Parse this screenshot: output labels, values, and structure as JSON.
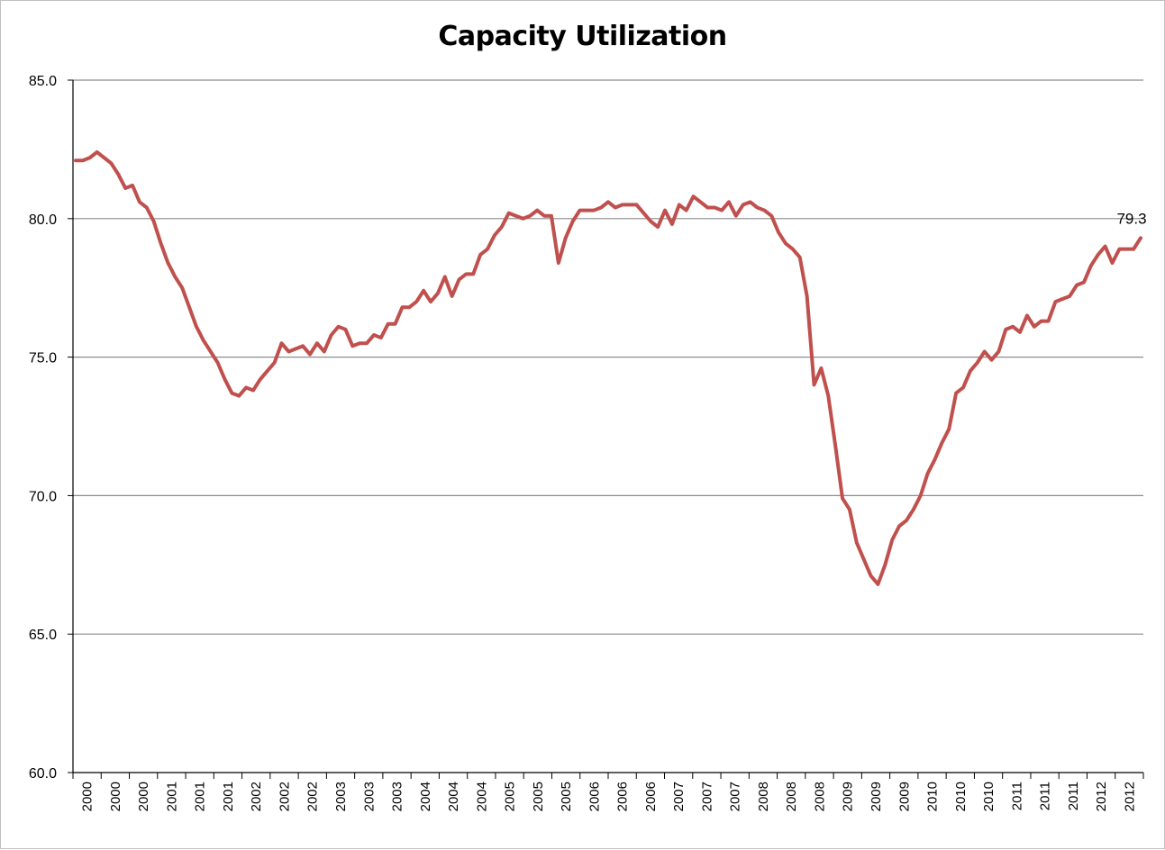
{
  "chart_data": {
    "type": "line",
    "title": "Capacity Utilization",
    "xlabel": "",
    "ylabel": "",
    "ylim": [
      60,
      85
    ],
    "y_ticks": [
      "60.0",
      "65.0",
      "70.0",
      "75.0",
      "80.0",
      "85.0"
    ],
    "y_tick_values": [
      60,
      65,
      70,
      75,
      80,
      85
    ],
    "x_tick_labels": [
      "2000",
      "2000",
      "2000",
      "2001",
      "2001",
      "2001",
      "2002",
      "2002",
      "2002",
      "2003",
      "2003",
      "2003",
      "2004",
      "2004",
      "2004",
      "2005",
      "2005",
      "2005",
      "2006",
      "2006",
      "2006",
      "2007",
      "2007",
      "2007",
      "2008",
      "2008",
      "2008",
      "2009",
      "2009",
      "2009",
      "2010",
      "2010",
      "2010",
      "2011",
      "2011",
      "2011",
      "2012",
      "2012"
    ],
    "grid": "horizontal",
    "legend": "none",
    "line_color": "#c0504d",
    "last_value_label": "79.3",
    "series": [
      {
        "values": [
          82.1,
          82.1,
          82.2,
          82.4,
          82.2,
          82.0,
          81.6,
          81.1,
          81.2,
          80.6,
          80.4,
          79.9,
          79.1,
          78.4,
          77.9,
          77.5,
          76.8,
          76.1,
          75.6,
          75.2,
          74.8,
          74.2,
          73.7,
          73.6,
          73.9,
          73.8,
          74.2,
          74.5,
          74.8,
          75.5,
          75.2,
          75.3,
          75.4,
          75.1,
          75.5,
          75.2,
          75.8,
          76.1,
          76.0,
          75.4,
          75.5,
          75.5,
          75.8,
          75.7,
          76.2,
          76.2,
          76.8,
          76.8,
          77.0,
          77.4,
          77.0,
          77.3,
          77.9,
          77.2,
          77.8,
          78.0,
          78.0,
          78.7,
          78.9,
          79.4,
          79.7,
          80.2,
          80.1,
          80.0,
          80.1,
          80.3,
          80.1,
          80.1,
          78.4,
          79.3,
          79.9,
          80.3,
          80.3,
          80.3,
          80.4,
          80.6,
          80.4,
          80.5,
          80.5,
          80.5,
          80.2,
          79.9,
          79.7,
          80.3,
          79.8,
          80.5,
          80.3,
          80.8,
          80.6,
          80.4,
          80.4,
          80.3,
          80.6,
          80.1,
          80.5,
          80.6,
          80.4,
          80.3,
          80.1,
          79.5,
          79.1,
          78.9,
          78.6,
          77.2,
          74.0,
          74.6,
          73.6,
          71.8,
          69.9,
          69.5,
          68.3,
          67.7,
          67.1,
          66.8,
          67.5,
          68.4,
          68.9,
          69.1,
          69.5,
          70.0,
          70.8,
          71.3,
          71.9,
          72.4,
          73.7,
          73.9,
          74.5,
          74.8,
          75.2,
          74.9,
          75.2,
          76.0,
          76.1,
          75.9,
          76.5,
          76.1,
          76.3,
          76.3,
          77.0,
          77.1,
          77.2,
          77.6,
          77.7,
          78.3,
          78.7,
          79.0,
          78.4,
          78.9,
          78.9,
          78.9,
          79.3
        ]
      }
    ]
  }
}
